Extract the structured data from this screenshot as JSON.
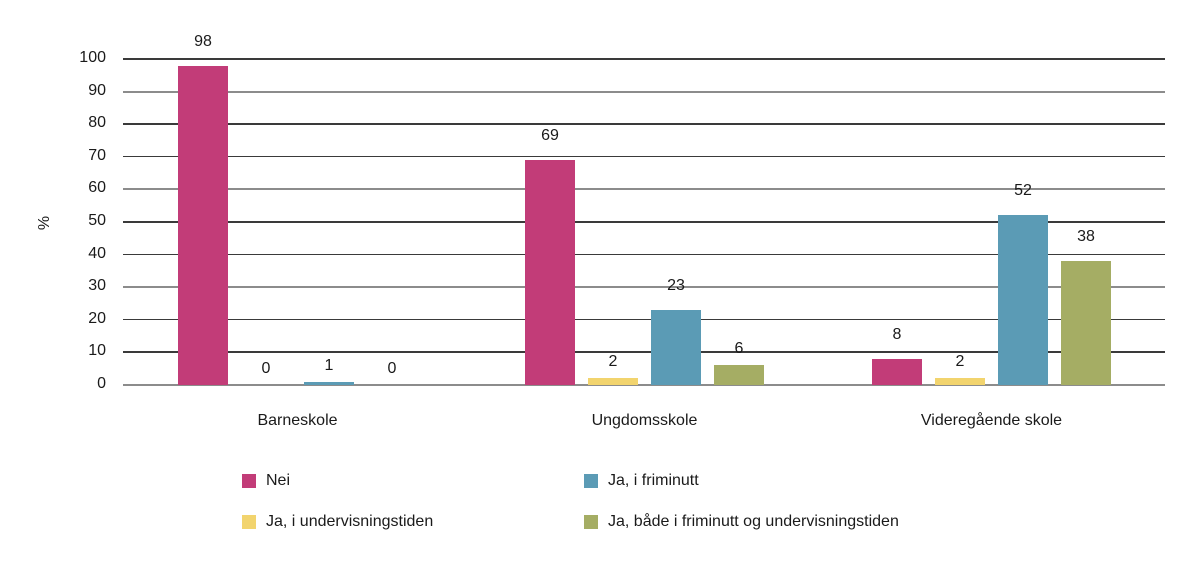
{
  "chart_data": {
    "type": "bar",
    "title": "",
    "xlabel": "",
    "ylabel": "%",
    "ylim": [
      0,
      100
    ],
    "yticks": [
      0,
      10,
      20,
      30,
      40,
      50,
      60,
      70,
      80,
      90,
      100
    ],
    "grid": true,
    "legend_position": "bottom",
    "categories": [
      "Barneskole",
      "Ungdomsskole",
      "Videregående skole"
    ],
    "series": [
      {
        "name": "Nei",
        "color": "#c23c78",
        "values": [
          98,
          69,
          8
        ]
      },
      {
        "name": "Ja, i undervisningstiden",
        "color": "#f2d46e",
        "values": [
          0,
          2,
          2
        ]
      },
      {
        "name": "Ja, i friminutt",
        "color": "#5b9bb5",
        "values": [
          1,
          23,
          52
        ]
      },
      {
        "name": "Ja, både i friminutt og undervisningstiden",
        "color": "#a5ad64",
        "values": [
          0,
          6,
          38
        ]
      }
    ]
  },
  "legend": [
    {
      "label": "Nei",
      "color": "#c23c78"
    },
    {
      "label": "Ja, i friminutt",
      "color": "#5b9bb5"
    },
    {
      "label": "Ja, i undervisningstiden",
      "color": "#f2d46e"
    },
    {
      "label": "Ja, både i friminutt og undervisningstiden",
      "color": "#a5ad64"
    }
  ]
}
